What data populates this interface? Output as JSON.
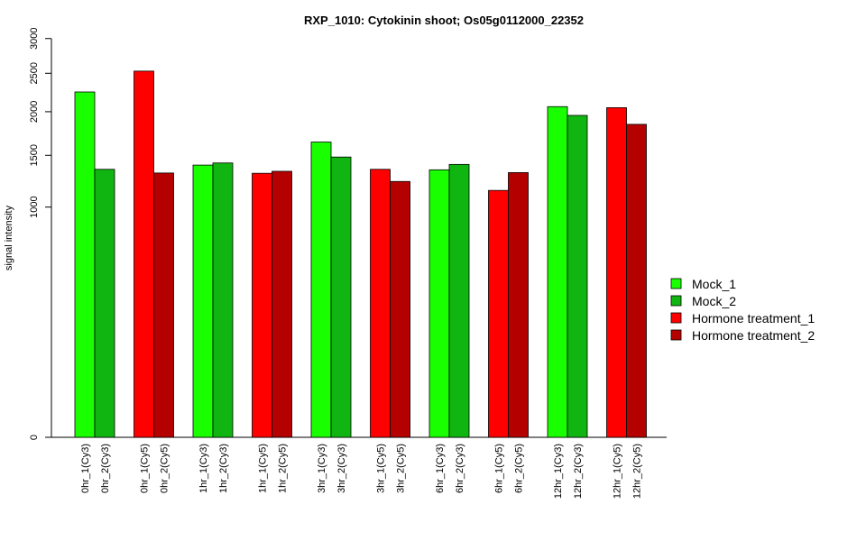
{
  "chart_data": {
    "type": "bar",
    "title": "RXP_1010: Cytokinin shoot; Os05g0112000_22352",
    "ylabel": "signal intensity",
    "xlabel": "",
    "y_ticks": [
      "0",
      "1000",
      "1500",
      "2000",
      "2500",
      "3000"
    ],
    "groups": [
      {
        "labels": [
          "0hr_1(Cy3)",
          "0hr_2(Cy3)"
        ],
        "series": [
          "Mock_1",
          "Mock_2"
        ],
        "values": [
          2250,
          1355
        ]
      },
      {
        "labels": [
          "0hr_1(Cy5)",
          "0hr_2(Cy5)"
        ],
        "series": [
          "Hormone treatment_1",
          "Hormone treatment_2"
        ],
        "values": [
          2530,
          1318
        ]
      },
      {
        "labels": [
          "1hr_1(Cy3)",
          "1hr_2(Cy3)"
        ],
        "series": [
          "Mock_1",
          "Mock_2"
        ],
        "values": [
          1398,
          1420
        ]
      },
      {
        "labels": [
          "1hr_1(Cy5)",
          "1hr_2(Cy5)"
        ],
        "series": [
          "Hormone treatment_1",
          "Hormone treatment_2"
        ],
        "values": [
          1315,
          1335
        ]
      },
      {
        "labels": [
          "3hr_1(Cy3)",
          "3hr_2(Cy3)"
        ],
        "series": [
          "Mock_1",
          "Mock_2"
        ],
        "values": [
          1645,
          1482
        ]
      },
      {
        "labels": [
          "3hr_1(Cy5)",
          "3hr_2(Cy5)"
        ],
        "series": [
          "Hormone treatment_1",
          "Hormone treatment_2"
        ],
        "values": [
          1355,
          1235
        ]
      },
      {
        "labels": [
          "6hr_1(Cy3)",
          "6hr_2(Cy3)"
        ],
        "series": [
          "Mock_1",
          "Mock_2"
        ],
        "values": [
          1350,
          1405
        ]
      },
      {
        "labels": [
          "6hr_1(Cy5)",
          "6hr_2(Cy5)"
        ],
        "series": [
          "Hormone treatment_1",
          "Hormone treatment_2"
        ],
        "values": [
          1150,
          1322
        ]
      },
      {
        "labels": [
          "12hr_1(Cy3)",
          "12hr_2(Cy3)"
        ],
        "series": [
          "Mock_1",
          "Mock_2"
        ],
        "values": [
          2063,
          1955
        ]
      },
      {
        "labels": [
          "12hr_1(Cy5)",
          "12hr_2(Cy5)"
        ],
        "series": [
          "Hormone treatment_1",
          "Hormone treatment_2"
        ],
        "values": [
          2050,
          1848
        ]
      }
    ],
    "legend": {
      "placement": "right",
      "entries": [
        {
          "name": "Mock_1",
          "color": "#19ff00"
        },
        {
          "name": "Mock_2",
          "color": "#11b511"
        },
        {
          "name": "Hormone treatment_1",
          "color": "#ff0000"
        },
        {
          "name": "Hormone treatment_2",
          "color": "#b50000"
        }
      ]
    },
    "grid": false
  }
}
